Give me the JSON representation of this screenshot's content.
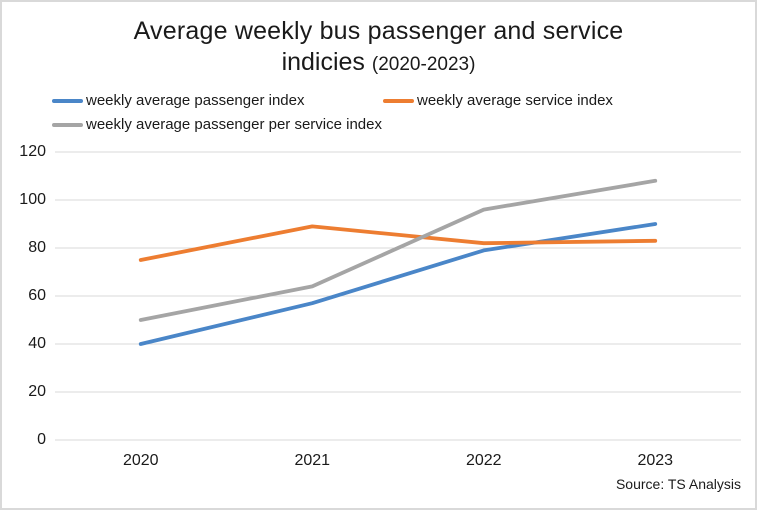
{
  "page": {
    "title_line1": "Average weekly bus passenger and service",
    "title_line2_main": "indicies ",
    "title_line2_sub": "(2020-2023)",
    "source": "Source: TS Analysis"
  },
  "legend": {
    "items": [
      {
        "label": "weekly average passenger index",
        "color": "#4A86C8"
      },
      {
        "label": "weekly average service index",
        "color": "#ED7D31"
      },
      {
        "label": "weekly average passenger per service index",
        "color": "#A5A5A5"
      }
    ]
  },
  "chart_data": {
    "type": "line",
    "title": "Average weekly bus passenger and service indicies (2020-2023)",
    "categories": [
      "2020",
      "2021",
      "2022",
      "2023"
    ],
    "series": [
      {
        "name": "weekly average passenger index",
        "color": "#4A86C8",
        "values": [
          40,
          57,
          79,
          90
        ]
      },
      {
        "name": "weekly average service index",
        "color": "#ED7D31",
        "values": [
          75,
          89,
          82,
          83
        ]
      },
      {
        "name": "weekly average passenger per service index",
        "color": "#A5A5A5",
        "values": [
          50,
          64,
          96,
          108
        ]
      }
    ],
    "xlabel": "",
    "ylabel": "",
    "ylim": [
      0,
      120
    ],
    "yticks": [
      0,
      20,
      40,
      60,
      80,
      100,
      120
    ],
    "grid": true,
    "gridline_color": "#D9D9D9",
    "legend_position": "top-left",
    "source": "Source: TS Analysis"
  }
}
